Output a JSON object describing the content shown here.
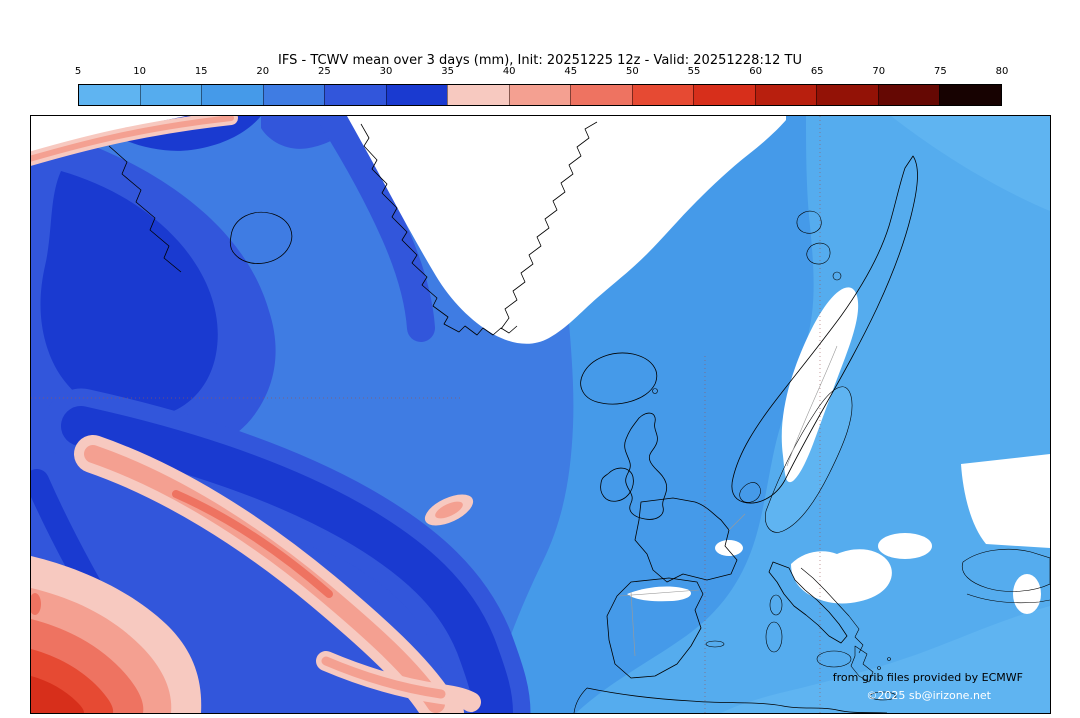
{
  "title": "IFS - TCWV mean over 3 days (mm), Init: 20251225 12z - Valid: 20251228:12 TU",
  "colorbar": {
    "ticks": [
      "5",
      "10",
      "15",
      "20",
      "25",
      "30",
      "35",
      "40",
      "45",
      "50",
      "55",
      "60",
      "65",
      "70",
      "75",
      "80"
    ],
    "segment_colors": [
      "#5fb4f1",
      "#55acee",
      "#459ae9",
      "#3f7ce3",
      "#3256db",
      "#1a3ad0",
      "#f7c9c0",
      "#f4a091",
      "#ee7361",
      "#e64a33",
      "#d72f1b",
      "#b81f0e",
      "#931206",
      "#650803",
      "#170201"
    ]
  },
  "attribution": {
    "line1": "from grib files provided by ECMWF",
    "line2": "©2025 sb@irizone.net"
  },
  "palette": {
    "white": "#ffffff",
    "b1": "#5fb4f1",
    "b2": "#55acee",
    "b3": "#459ae9",
    "b4": "#3f7ce3",
    "b5": "#3256db",
    "b6": "#1a3ad0",
    "pink1": "#f7c9c0",
    "pink2": "#f4a091",
    "red1": "#ee7361",
    "red2": "#e64a33",
    "red3": "#d72f1b"
  }
}
